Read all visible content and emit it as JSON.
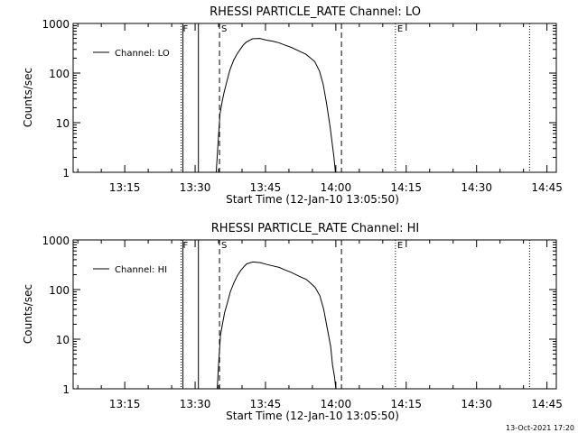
{
  "footer": {
    "timestamp": "13-Oct-2021 17:20"
  },
  "chart_data": [
    {
      "type": "line",
      "title": "RHESSI PARTICLE_RATE Channel: LO",
      "xlabel": "Start Time (12-Jan-10 13:05:50)",
      "ylabel": "Counts/sec",
      "y_scale": "log",
      "ylim": [
        1,
        1000
      ],
      "xlim_minutes": [
        784,
        887
      ],
      "x_ticks": [
        "13:15",
        "13:30",
        "13:45",
        "14:00",
        "14:15",
        "14:30",
        "14:45"
      ],
      "x_tick_minutes": [
        795,
        810,
        825,
        840,
        855,
        870,
        885
      ],
      "y_ticks": [
        "1",
        "10",
        "100",
        "1000"
      ],
      "y_tick_values": [
        1,
        10,
        100,
        1000
      ],
      "legend": {
        "position": "top-left",
        "entries": [
          "Channel: LO"
        ]
      },
      "markers": [
        {
          "label": "F",
          "time_minutes": 807,
          "style": "dotted"
        },
        {
          "label": "",
          "time_minutes": 807.4,
          "style": "solid"
        },
        {
          "label": "",
          "time_minutes": 810.7,
          "style": "solid"
        },
        {
          "label": "S",
          "time_minutes": 815.2,
          "style": "dashed"
        },
        {
          "label": "",
          "time_minutes": 841.2,
          "style": "dashed"
        },
        {
          "label": "E",
          "time_minutes": 852.7,
          "style": "dotted"
        },
        {
          "label": "",
          "time_minutes": 881.3,
          "style": "dotted"
        }
      ],
      "series": [
        {
          "name": "Channel: LO",
          "x": [
            814.5,
            814.9,
            815.3,
            815.8,
            816.2,
            816.8,
            817.4,
            818.2,
            818.9,
            819.6,
            820.3,
            820.9,
            822.2,
            823.8,
            825.2,
            826.5,
            827.8,
            829.0,
            830.5,
            832.1,
            833.6,
            834.5,
            835.5,
            836.5,
            837.3,
            838.0,
            838.8,
            839.2,
            839.6,
            839.9
          ],
          "y": [
            0.9,
            4,
            15,
            28,
            42,
            70,
            115,
            180,
            240,
            300,
            370,
            420,
            490,
            500,
            460,
            440,
            410,
            370,
            330,
            280,
            240,
            205,
            170,
            110,
            60,
            25,
            8,
            4,
            2,
            1
          ]
        }
      ]
    },
    {
      "type": "line",
      "title": "RHESSI PARTICLE_RATE Channel: HI",
      "xlabel": "Start Time (12-Jan-10 13:05:50)",
      "ylabel": "Counts/sec",
      "y_scale": "log",
      "ylim": [
        1,
        1000
      ],
      "xlim_minutes": [
        784,
        887
      ],
      "x_ticks": [
        "13:15",
        "13:30",
        "13:45",
        "14:00",
        "14:15",
        "14:30",
        "14:45"
      ],
      "x_tick_minutes": [
        795,
        810,
        825,
        840,
        855,
        870,
        885
      ],
      "y_ticks": [
        "1",
        "10",
        "100",
        "1000"
      ],
      "y_tick_values": [
        1,
        10,
        100,
        1000
      ],
      "legend": {
        "position": "top-left",
        "entries": [
          "Channel: HI"
        ]
      },
      "markers": [
        {
          "label": "F",
          "time_minutes": 807,
          "style": "dotted"
        },
        {
          "label": "",
          "time_minutes": 807.4,
          "style": "solid"
        },
        {
          "label": "",
          "time_minutes": 810.7,
          "style": "solid"
        },
        {
          "label": "S",
          "time_minutes": 815.2,
          "style": "dashed"
        },
        {
          "label": "",
          "time_minutes": 841.2,
          "style": "dashed"
        },
        {
          "label": "E",
          "time_minutes": 852.7,
          "style": "dotted"
        },
        {
          "label": "",
          "time_minutes": 881.3,
          "style": "dotted"
        }
      ],
      "series": [
        {
          "name": "Channel: HI",
          "x": [
            814.7,
            815.0,
            815.4,
            815.9,
            816.3,
            816.9,
            817.5,
            818.3,
            819.0,
            819.7,
            820.4,
            821.0,
            822.3,
            823.9,
            825.3,
            826.6,
            827.9,
            829.1,
            830.6,
            832.2,
            833.7,
            834.6,
            835.6,
            836.6,
            837.4,
            838.1,
            838.9,
            839.3,
            839.7,
            840.0
          ],
          "y": [
            0.9,
            3,
            12,
            22,
            35,
            55,
            90,
            140,
            190,
            240,
            290,
            330,
            360,
            350,
            320,
            300,
            280,
            250,
            220,
            185,
            160,
            135,
            110,
            75,
            40,
            18,
            7,
            3,
            1.8,
            1
          ]
        }
      ]
    }
  ]
}
